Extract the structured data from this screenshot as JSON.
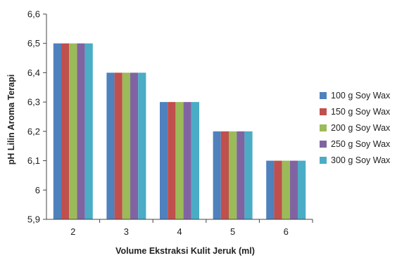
{
  "chart_data": {
    "type": "bar",
    "xlabel": "Volume Ekstraksi Kulit Jeruk (ml)",
    "ylabel": "pH Lilin Aroma Terapi",
    "categories": [
      "2",
      "3",
      "4",
      "5",
      "6"
    ],
    "ylim": [
      5.9,
      6.6
    ],
    "yticks": [
      "6,6",
      "6,5",
      "6,4",
      "6,3",
      "6,2",
      "6,1",
      "6",
      "5,9"
    ],
    "ytick_values": [
      6.6,
      6.5,
      6.4,
      6.3,
      6.2,
      6.1,
      6.0,
      5.9
    ],
    "grid": false,
    "legend_position": "right",
    "series": [
      {
        "name": "100 g Soy Wax",
        "color": "#4f81bd",
        "values": [
          6.5,
          6.4,
          6.3,
          6.2,
          6.1
        ]
      },
      {
        "name": "150 g Soy Wax",
        "color": "#c0504d",
        "values": [
          6.5,
          6.4,
          6.3,
          6.2,
          6.1
        ]
      },
      {
        "name": "200 g Soy Wax",
        "color": "#9bbb59",
        "values": [
          6.5,
          6.4,
          6.3,
          6.2,
          6.1
        ]
      },
      {
        "name": "250 g Soy Wax",
        "color": "#8064a2",
        "values": [
          6.5,
          6.4,
          6.3,
          6.2,
          6.1
        ]
      },
      {
        "name": "300 g Soy Wax",
        "color": "#4bacc6",
        "values": [
          6.5,
          6.4,
          6.3,
          6.2,
          6.1
        ]
      }
    ]
  }
}
